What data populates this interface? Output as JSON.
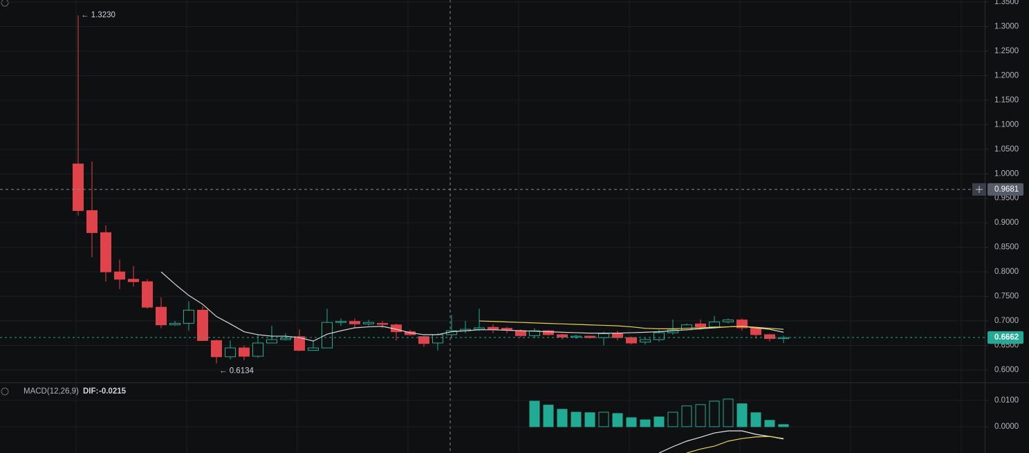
{
  "chart_data": [
    {
      "type": "candlestick",
      "up_color": "#22ab94",
      "down_color": "#e0434a",
      "hollow_up": true,
      "open": [
        1.02,
        0.925,
        0.88,
        0.8,
        0.785,
        0.78,
        0.728,
        0.692,
        0.695,
        0.722,
        0.66,
        0.627,
        0.645,
        0.628,
        0.655,
        0.662,
        0.668,
        0.64,
        0.645,
        0.697,
        0.699,
        0.694,
        0.695,
        0.692,
        0.678,
        0.668,
        0.655,
        0.672,
        0.68,
        0.683,
        0.687,
        0.685,
        0.68,
        0.67,
        0.68,
        0.672,
        0.667,
        0.669,
        0.666,
        0.674,
        0.666,
        0.657,
        0.662,
        0.676,
        0.682,
        0.694,
        0.688,
        0.698,
        0.702,
        0.686,
        0.672,
        0.664
      ],
      "high": [
        1.323,
        1.025,
        0.895,
        0.825,
        0.812,
        0.785,
        0.748,
        0.7,
        0.74,
        0.73,
        0.662,
        0.66,
        0.65,
        0.672,
        0.69,
        0.675,
        0.683,
        0.66,
        0.725,
        0.705,
        0.705,
        0.702,
        0.7,
        0.695,
        0.682,
        0.67,
        0.675,
        0.712,
        0.7,
        0.725,
        0.693,
        0.688,
        0.683,
        0.685,
        0.682,
        0.674,
        0.672,
        0.67,
        0.678,
        0.68,
        0.668,
        0.665,
        0.682,
        0.703,
        0.695,
        0.703,
        0.71,
        0.705,
        0.705,
        0.688,
        0.674,
        0.67
      ],
      "low": [
        0.915,
        0.83,
        0.78,
        0.765,
        0.77,
        0.725,
        0.685,
        0.69,
        0.68,
        0.66,
        0.6134,
        0.622,
        0.62,
        0.625,
        0.655,
        0.66,
        0.638,
        0.64,
        0.645,
        0.69,
        0.685,
        0.69,
        0.685,
        0.66,
        0.67,
        0.647,
        0.64,
        0.665,
        0.675,
        0.68,
        0.675,
        0.675,
        0.667,
        0.665,
        0.67,
        0.662,
        0.663,
        0.664,
        0.65,
        0.66,
        0.652,
        0.652,
        0.658,
        0.672,
        0.68,
        0.682,
        0.685,
        0.695,
        0.68,
        0.664,
        0.658,
        0.655
      ],
      "close": [
        0.925,
        0.88,
        0.8,
        0.785,
        0.78,
        0.728,
        0.692,
        0.695,
        0.722,
        0.66,
        0.627,
        0.645,
        0.628,
        0.655,
        0.662,
        0.665,
        0.64,
        0.645,
        0.697,
        0.699,
        0.694,
        0.697,
        0.693,
        0.678,
        0.672,
        0.654,
        0.672,
        0.68,
        0.683,
        0.686,
        0.683,
        0.682,
        0.67,
        0.68,
        0.672,
        0.667,
        0.669,
        0.666,
        0.674,
        0.666,
        0.655,
        0.662,
        0.676,
        0.682,
        0.692,
        0.688,
        0.698,
        0.702,
        0.686,
        0.672,
        0.664,
        0.666
      ],
      "lines": [
        {
          "color": "#d9d9d9",
          "values": [
            null,
            null,
            null,
            null,
            null,
            null,
            0.8,
            0.775,
            0.752,
            0.734,
            0.709,
            0.694,
            0.678,
            0.672,
            0.669,
            0.669,
            0.666,
            0.659,
            0.673,
            0.68,
            0.686,
            0.688,
            0.689,
            0.683,
            0.676,
            0.672,
            0.672,
            0.678,
            0.68,
            0.682,
            0.682,
            0.681,
            0.68,
            0.679,
            0.678,
            0.677,
            0.676,
            0.675,
            0.675,
            0.675,
            0.676,
            0.677,
            0.678,
            0.68,
            0.682,
            0.684,
            0.686,
            0.688,
            0.689,
            0.686,
            0.683,
            0.677
          ]
        },
        {
          "color": "#e8d44d",
          "values": [
            null,
            null,
            null,
            null,
            null,
            null,
            null,
            null,
            null,
            null,
            null,
            null,
            null,
            null,
            null,
            null,
            null,
            null,
            null,
            null,
            null,
            null,
            null,
            null,
            null,
            null,
            null,
            null,
            null,
            0.7,
            0.699,
            0.698,
            0.697,
            0.696,
            0.695,
            0.694,
            0.693,
            0.692,
            0.691,
            0.69,
            0.688,
            0.685,
            0.684,
            0.684,
            0.685,
            0.686,
            0.687,
            0.688,
            0.689,
            0.687,
            0.685,
            0.683
          ]
        }
      ],
      "ylim": [
        0.5746,
        1.3542
      ],
      "yticks": [
        {
          "value": 0.6,
          "label": "0.6000"
        },
        {
          "value": 0.65,
          "label": "0.6500"
        },
        {
          "value": 0.7,
          "label": "0.7000"
        },
        {
          "value": 0.75,
          "label": "0.7500"
        },
        {
          "value": 0.8,
          "label": "0.8000"
        },
        {
          "value": 0.85,
          "label": "0.8500"
        },
        {
          "value": 0.9,
          "label": "0.9000"
        },
        {
          "value": 0.95,
          "label": "0.9500"
        },
        {
          "value": 1.0,
          "label": "1.0000"
        },
        {
          "value": 1.05,
          "label": "1.0500"
        },
        {
          "value": 1.1,
          "label": "1.1000"
        },
        {
          "value": 1.15,
          "label": "1.1500"
        },
        {
          "value": 1.2,
          "label": "1.2000"
        },
        {
          "value": 1.25,
          "label": "1.2500"
        },
        {
          "value": 1.3,
          "label": "1.3000"
        },
        {
          "value": 1.35,
          "label": "1.3500"
        }
      ],
      "high_marker": {
        "value": 1.323,
        "label": "1.3230"
      },
      "low_marker": {
        "value": 0.6134,
        "label": "0.6134"
      },
      "crosshair_price": {
        "value": 0.9681,
        "label": "0.9681"
      },
      "last_price": {
        "value": 0.6662,
        "label": "0.6662"
      },
      "grid": true
    },
    {
      "type": "macd",
      "title": "MACD(12,26,9)",
      "dif_label": "DIF:",
      "dif_value": -0.0215,
      "color": "#22ab94",
      "values": [
        null,
        null,
        null,
        null,
        null,
        null,
        null,
        null,
        null,
        null,
        null,
        null,
        null,
        null,
        null,
        null,
        null,
        null,
        null,
        null,
        null,
        null,
        null,
        null,
        null,
        null,
        null,
        null,
        null,
        null,
        null,
        null,
        null,
        0.0097,
        0.0082,
        0.0066,
        0.0055,
        0.0053,
        0.0055,
        0.005,
        0.0034,
        0.0026,
        0.0037,
        0.0055,
        0.0079,
        0.0084,
        0.0097,
        0.0105,
        0.0087,
        0.0053,
        0.0024,
        0.0008
      ],
      "hollow": [
        null,
        null,
        null,
        null,
        null,
        null,
        null,
        null,
        null,
        null,
        null,
        null,
        null,
        null,
        null,
        null,
        null,
        null,
        null,
        null,
        null,
        null,
        null,
        null,
        null,
        null,
        null,
        null,
        null,
        null,
        null,
        null,
        null,
        false,
        false,
        false,
        false,
        false,
        true,
        false,
        false,
        false,
        false,
        true,
        true,
        true,
        true,
        true,
        false,
        false,
        false,
        false
      ],
      "lines": [
        {
          "color": "#e6e6e6",
          "values": [
            null,
            null,
            null,
            null,
            null,
            null,
            null,
            null,
            null,
            null,
            null,
            null,
            null,
            null,
            null,
            null,
            null,
            null,
            null,
            null,
            null,
            null,
            null,
            null,
            null,
            null,
            null,
            null,
            null,
            null,
            null,
            null,
            null,
            null,
            null,
            null,
            null,
            null,
            null,
            null,
            null,
            null,
            -0.01,
            -0.0076,
            -0.0055,
            -0.004,
            -0.0024,
            -0.0016,
            -0.0016,
            -0.0029,
            -0.0037,
            -0.0047
          ]
        },
        {
          "color": "#e8d44d",
          "values": [
            null,
            null,
            null,
            null,
            null,
            null,
            null,
            null,
            null,
            null,
            null,
            null,
            null,
            null,
            null,
            null,
            null,
            null,
            null,
            null,
            null,
            null,
            null,
            null,
            null,
            null,
            null,
            null,
            null,
            null,
            null,
            null,
            null,
            null,
            null,
            null,
            null,
            null,
            null,
            null,
            null,
            null,
            null,
            null,
            -0.01,
            -0.0085,
            -0.0074,
            -0.0055,
            -0.0045,
            -0.0039,
            -0.0037,
            -0.0045
          ]
        }
      ],
      "ylim": [
        -0.01,
        0.0168
      ],
      "yticks": [
        {
          "value": 0.01,
          "label": "0.0100"
        },
        {
          "value": 0,
          "label": "0.0000"
        }
      ]
    }
  ]
}
